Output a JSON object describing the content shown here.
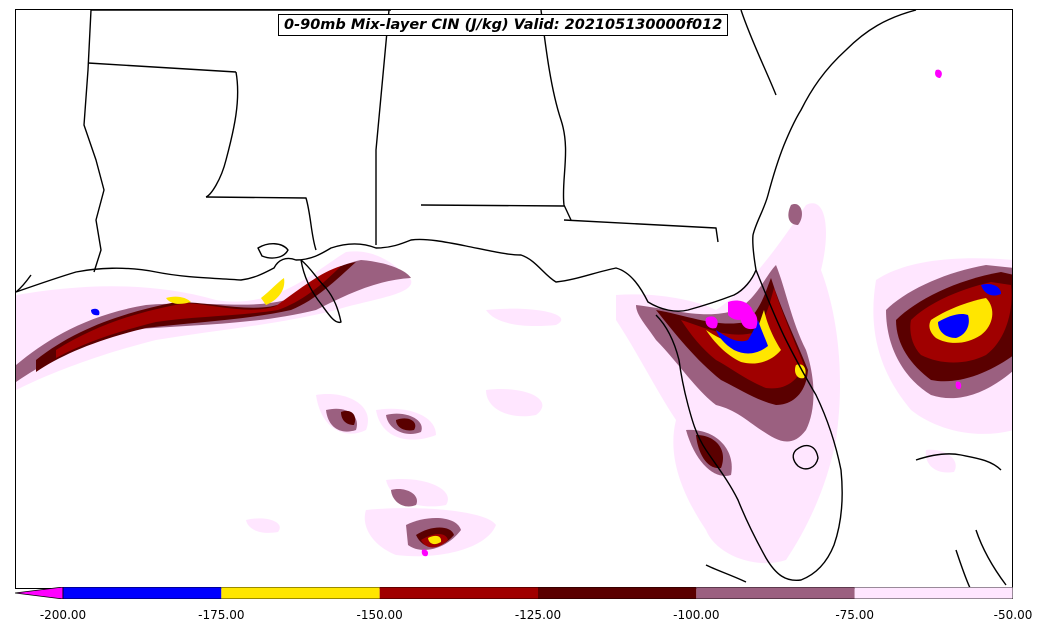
{
  "title": "0-90mb Mix-layer CIN (J/kg) Valid: 202105130000f012",
  "colorbar": {
    "extend": "min",
    "bins": [
      {
        "from": -200,
        "to": -175,
        "color": "#0000ff"
      },
      {
        "from": -175,
        "to": -150,
        "color": "#ffe600"
      },
      {
        "from": -150,
        "to": -125,
        "color": "#a00000"
      },
      {
        "from": -125,
        "to": -100,
        "color": "#5a0000"
      },
      {
        "from": -100,
        "to": -75,
        "color": "#9b6080"
      },
      {
        "from": -75,
        "to": -50,
        "color": "#ffe6ff"
      }
    ],
    "under_color": "#ff00ff",
    "ticks": [
      "-200.00",
      "-175.00",
      "-150.00",
      "-125.00",
      "-100.00",
      "-75.00",
      "-50.00"
    ]
  },
  "colors": {
    "magenta": "#ff00ff",
    "blue": "#0000ff",
    "yellow": "#ffe600",
    "red": "#a00000",
    "darkred": "#5a0000",
    "mauve": "#9b6080",
    "pink": "#ffe6ff"
  }
}
